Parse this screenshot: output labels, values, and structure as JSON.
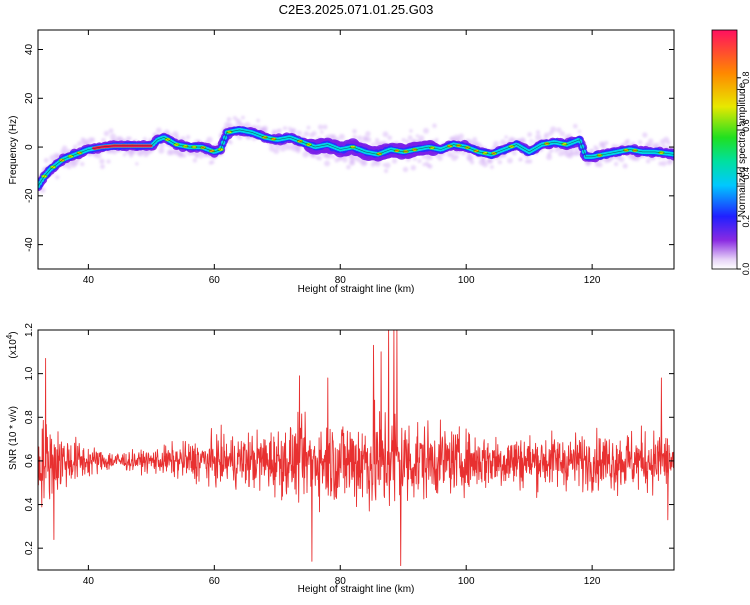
{
  "title": "C2E3.2025.071.01.25.G03",
  "chart_data": [
    {
      "type": "heatmap",
      "xlabel": "Height of straight line (km)",
      "ylabel": "Frequency (Hz)",
      "xlim": [
        32,
        133
      ],
      "ylim": [
        -50,
        48
      ],
      "xticks": [
        40,
        60,
        80,
        100,
        120
      ],
      "xtick_labels": [
        "40",
        "60",
        "80",
        "100",
        "120"
      ],
      "yticks": [
        -40,
        -20,
        0,
        20,
        40
      ],
      "ytick_labels": [
        "-40",
        "-20",
        "0",
        "20",
        "40"
      ],
      "colorbar": {
        "label": "Normalized spectral amplitude",
        "range": [
          0,
          1
        ],
        "ticks": [
          0.0,
          0.2,
          0.4,
          0.6,
          0.8
        ],
        "tick_labels": [
          "0.0",
          "0.2",
          "0.4",
          "0.6",
          "0.8"
        ]
      },
      "ridge": {
        "x": [
          32,
          33,
          34,
          35,
          36,
          38,
          40,
          42,
          44,
          46,
          48,
          50,
          51,
          52,
          54,
          56,
          58,
          60,
          61,
          62,
          64,
          66,
          68,
          70,
          72,
          74,
          76,
          78,
          80,
          82,
          84,
          86,
          88,
          90,
          92,
          94,
          96,
          98,
          100,
          102,
          104,
          106,
          108,
          110,
          112,
          114,
          116,
          118,
          119,
          120,
          122,
          124,
          126,
          128,
          130,
          133
        ],
        "y": [
          -16,
          -12,
          -9,
          -7,
          -5,
          -3,
          -1,
          0,
          0.5,
          0.5,
          0.5,
          0.5,
          3,
          4,
          1,
          0,
          0,
          -2,
          -1,
          6,
          7,
          6,
          4,
          3,
          4,
          2,
          0,
          1,
          -1,
          0,
          -2,
          -3,
          -1,
          -2,
          -1,
          0,
          -1,
          1,
          0,
          -2,
          -3,
          -1,
          1,
          -2,
          1,
          2,
          1,
          3,
          -4,
          -4,
          -3,
          -2,
          -1,
          -2,
          -2,
          -3
        ]
      }
    },
    {
      "type": "line",
      "xlabel": "Height of straight line (km)",
      "ylabel": "SNR (10 * v/v)",
      "multiplier_label": "(x10",
      "multiplier_exp": "4",
      "multiplier_close": ")",
      "xlim": [
        32,
        133
      ],
      "ylim": [
        0.1,
        1.2
      ],
      "xticks": [
        40,
        60,
        80,
        100,
        120
      ],
      "xtick_labels": [
        "40",
        "60",
        "80",
        "100",
        "120"
      ],
      "yticks": [
        0.2,
        0.4,
        0.6,
        0.8,
        1.0,
        1.2
      ],
      "ytick_labels": [
        "0.2",
        "0.4",
        "0.6",
        "0.8",
        "1.0",
        "1.2"
      ],
      "series": [
        {
          "color": "#e83030",
          "mean": 0.6,
          "noise_profile": {
            "x": [
              32,
              38,
              42,
              48,
              52,
              58,
              62,
              68,
              72,
              78,
              82,
              86,
              88,
              90,
              94,
              100,
              110,
              120,
              125,
              133
            ],
            "amplitude": [
              0.25,
              0.12,
              0.06,
              0.05,
              0.08,
              0.12,
              0.14,
              0.17,
              0.2,
              0.22,
              0.26,
              0.3,
              0.32,
              0.27,
              0.2,
              0.16,
              0.15,
              0.15,
              0.17,
              0.16
            ]
          },
          "peaks": [
            {
              "x": 33.2,
              "y": 1.07
            },
            {
              "x": 34.5,
              "y": 0.24
            },
            {
              "x": 73.5,
              "y": 0.99
            },
            {
              "x": 75.5,
              "y": 0.14
            },
            {
              "x": 85.3,
              "y": 1.13
            },
            {
              "x": 86.5,
              "y": 1.1
            },
            {
              "x": 87.7,
              "y": 1.2
            },
            {
              "x": 88.5,
              "y": 1.2
            },
            {
              "x": 89.0,
              "y": 1.2
            },
            {
              "x": 89.6,
              "y": 0.12
            },
            {
              "x": 78.0,
              "y": 0.98
            },
            {
              "x": 131.0,
              "y": 0.98
            },
            {
              "x": 132.0,
              "y": 0.33
            }
          ]
        }
      ]
    }
  ]
}
